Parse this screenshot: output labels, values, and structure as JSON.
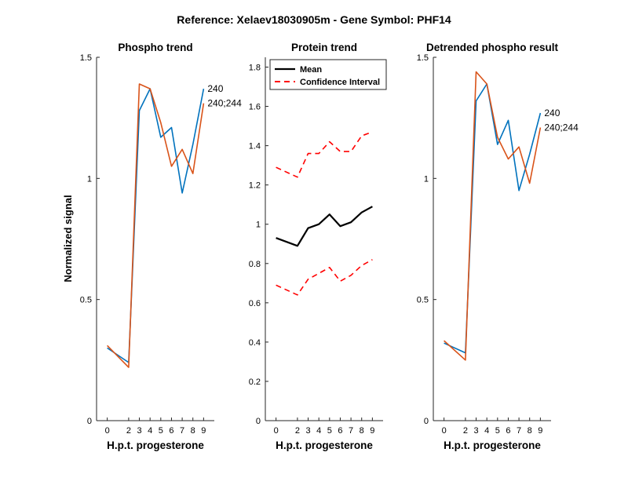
{
  "figure": {
    "title": "Reference:  Xelaev18030905m - Gene Symbol:  PHF14",
    "ylabel": "Normalized signal"
  },
  "colors": {
    "blue": "#0072BD",
    "orange": "#D95319",
    "black": "#000000",
    "red": "#FF0000",
    "axis": "#262626"
  },
  "chart_data": [
    {
      "type": "line",
      "title": "Phospho trend",
      "xlabel": "H.p.t. progesterone",
      "x": [
        0,
        2,
        3,
        4,
        5,
        6,
        7,
        8,
        9
      ],
      "ylim": [
        0,
        1.5
      ],
      "yticks": [
        0,
        0.5,
        1,
        1.5
      ],
      "ytick_labels": [
        "0",
        "0.5",
        "1",
        "1.5"
      ],
      "series": [
        {
          "name": "240",
          "color": "#0072BD",
          "values": [
            0.3,
            0.24,
            1.28,
            1.37,
            1.17,
            1.21,
            0.94,
            1.14,
            1.37
          ]
        },
        {
          "name": "240;244",
          "color": "#D95319",
          "values": [
            0.31,
            0.22,
            1.39,
            1.37,
            1.23,
            1.05,
            1.12,
            1.02,
            1.31
          ]
        }
      ]
    },
    {
      "type": "line",
      "title": "Protein trend",
      "xlabel": "H.p.t. progesterone",
      "x": [
        0,
        2,
        3,
        4,
        5,
        6,
        7,
        8,
        9
      ],
      "ylim": [
        0,
        1.85
      ],
      "yticks": [
        0,
        0.2,
        0.4,
        0.6,
        0.8,
        1,
        1.2,
        1.4,
        1.6,
        1.8
      ],
      "ytick_labels": [
        "0",
        "0.2",
        "0.4",
        "0.6",
        "0.8",
        "1",
        "1.2",
        "1.4",
        "1.6",
        "1.8"
      ],
      "legend": {
        "position": "top-left",
        "entries": [
          "Mean",
          "Confidence Interval"
        ]
      },
      "series": [
        {
          "name": "Mean",
          "color": "#000000",
          "style": "solid",
          "values": [
            0.93,
            0.89,
            0.98,
            1.0,
            1.05,
            0.99,
            1.01,
            1.06,
            1.09
          ]
        },
        {
          "name": "Confidence Interval",
          "color": "#FF0000",
          "style": "dashed",
          "values": [
            1.29,
            1.24,
            1.36,
            1.36,
            1.42,
            1.37,
            1.37,
            1.45,
            1.47
          ]
        },
        {
          "name": "Confidence Interval (lower)",
          "color": "#FF0000",
          "style": "dashed",
          "values": [
            0.69,
            0.64,
            0.72,
            0.75,
            0.78,
            0.71,
            0.74,
            0.79,
            0.82
          ]
        }
      ]
    },
    {
      "type": "line",
      "title": "Detrended phospho result",
      "xlabel": "H.p.t. progesterone",
      "x": [
        0,
        2,
        3,
        4,
        5,
        6,
        7,
        8,
        9
      ],
      "ylim": [
        0,
        1.5
      ],
      "yticks": [
        0,
        0.5,
        1,
        1.5
      ],
      "ytick_labels": [
        "0",
        "0.5",
        "1",
        "1.5"
      ],
      "series": [
        {
          "name": "240",
          "color": "#0072BD",
          "values": [
            0.32,
            0.28,
            1.32,
            1.39,
            1.14,
            1.24,
            0.95,
            1.1,
            1.27
          ]
        },
        {
          "name": "240;244",
          "color": "#D95319",
          "values": [
            0.33,
            0.25,
            1.44,
            1.39,
            1.17,
            1.08,
            1.13,
            0.98,
            1.21
          ]
        }
      ]
    }
  ]
}
